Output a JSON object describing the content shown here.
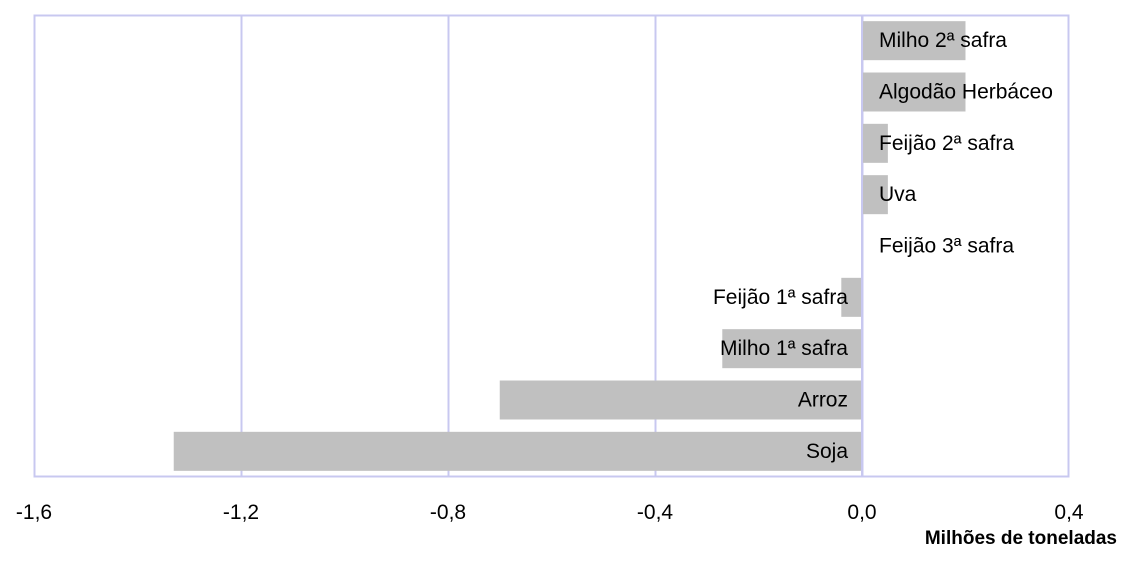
{
  "chart_data": {
    "type": "bar",
    "orientation": "horizontal",
    "categories": [
      "Milho 2ª safra",
      "Algodão Herbáceo",
      "Feijão 2ª safra",
      "Uva",
      "Feijão 3ª safra",
      "Feijão 1ª safra",
      "Milho 1ª safra",
      "Arroz",
      "Soja"
    ],
    "values": [
      0.2,
      0.2,
      0.05,
      0.05,
      0.0,
      -0.04,
      -0.27,
      -0.7,
      -1.33
    ],
    "xlim": [
      -1.6,
      0.4
    ],
    "xticks": [
      -1.6,
      -1.2,
      -0.8,
      -0.4,
      0.0,
      0.4
    ],
    "xtick_labels": [
      "-1,6",
      "-1,2",
      "-0,8",
      "-0,4",
      "0,0",
      "0,4"
    ],
    "xlabel": "Milhões de toneladas",
    "grid": "vertical",
    "colors": {
      "bar": "#c0c0c0",
      "grid": "#c8c8f0",
      "frame": "#c8c8f0",
      "text": "#000000"
    }
  }
}
